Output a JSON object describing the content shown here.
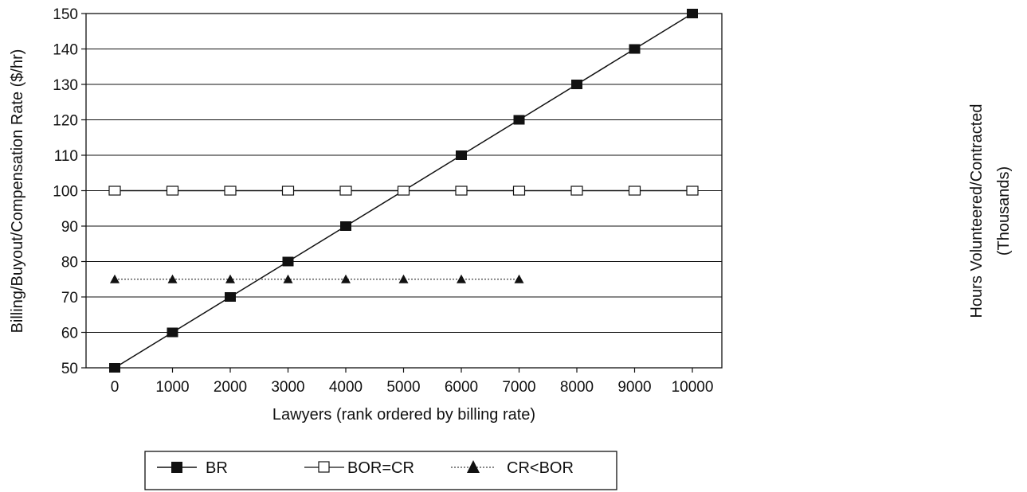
{
  "chart_data": {
    "type": "line",
    "title": "",
    "xlabel": "Lawyers (rank ordered by billing rate)",
    "ylabel": "Billing/Buyout/Compensation Rate ($/hr)",
    "y2label_line1": "Hours Volunteered/Contracted",
    "y2label_line2": "(Thousands)",
    "xlim": [
      0,
      10000
    ],
    "ylim": [
      50,
      150
    ],
    "xticks": [
      0,
      1000,
      2000,
      3000,
      4000,
      5000,
      6000,
      7000,
      8000,
      9000,
      10000
    ],
    "yticks": [
      50,
      60,
      70,
      80,
      90,
      100,
      110,
      120,
      130,
      140,
      150
    ],
    "grid": "horizontal",
    "legend_position": "bottom",
    "series": [
      {
        "name": "BR",
        "marker": "filled-square",
        "line": "solid",
        "x": [
          0,
          1000,
          2000,
          3000,
          4000,
          5000,
          6000,
          7000,
          8000,
          9000,
          10000
        ],
        "y": [
          50,
          60,
          70,
          80,
          90,
          100,
          110,
          120,
          130,
          140,
          150
        ]
      },
      {
        "name": "BOR=CR",
        "marker": "open-square",
        "line": "solid",
        "x": [
          0,
          1000,
          2000,
          3000,
          4000,
          5000,
          6000,
          7000,
          8000,
          9000,
          10000
        ],
        "y": [
          100,
          100,
          100,
          100,
          100,
          100,
          100,
          100,
          100,
          100,
          100
        ]
      },
      {
        "name": "CR<BOR",
        "marker": "filled-triangle",
        "line": "dotted",
        "x": [
          0,
          1000,
          2000,
          3000,
          4000,
          5000,
          6000,
          7000
        ],
        "y": [
          75,
          75,
          75,
          75,
          75,
          75,
          75,
          75
        ]
      }
    ]
  }
}
